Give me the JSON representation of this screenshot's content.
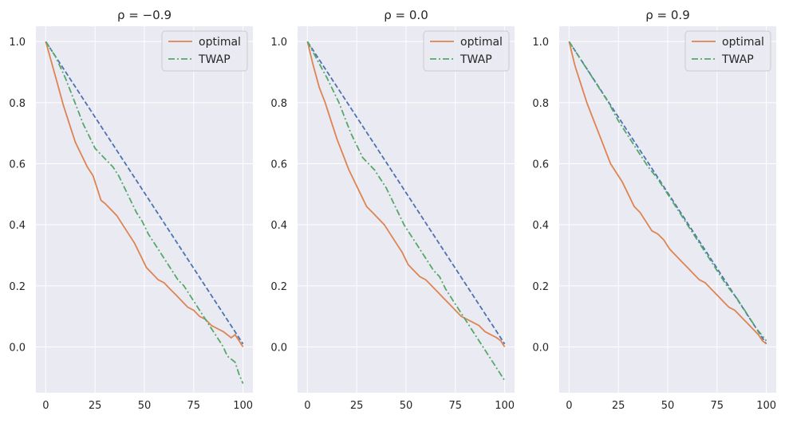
{
  "chart_data": [
    {
      "type": "line",
      "title": "ρ = −0.9",
      "xlabel": "",
      "ylabel": "",
      "xlim": [
        -5,
        105
      ],
      "ylim": [
        -0.15,
        1.05
      ],
      "xticks": [
        0,
        25,
        50,
        75,
        100
      ],
      "yticks": [
        0.0,
        0.2,
        0.4,
        0.6,
        0.8,
        1.0
      ],
      "grid": true,
      "legend_position": "top-right",
      "series": [
        {
          "name": "",
          "color": "#4c72b0",
          "style": "dashed",
          "x": [
            0,
            100
          ],
          "y": [
            1.0,
            0.01
          ]
        },
        {
          "name": "optimal",
          "color": "#dd8452",
          "style": "solid",
          "x": [
            0,
            3,
            6,
            9,
            12,
            15,
            18,
            21,
            24,
            26,
            28,
            30,
            33,
            36,
            39,
            42,
            45,
            48,
            51,
            54,
            57,
            60,
            63,
            66,
            69,
            72,
            75,
            78,
            81,
            84,
            87,
            90,
            92,
            94,
            96,
            98,
            100
          ],
          "y": [
            1.0,
            0.93,
            0.86,
            0.79,
            0.73,
            0.67,
            0.63,
            0.59,
            0.56,
            0.52,
            0.48,
            0.47,
            0.45,
            0.43,
            0.4,
            0.37,
            0.34,
            0.3,
            0.26,
            0.24,
            0.22,
            0.21,
            0.19,
            0.17,
            0.15,
            0.13,
            0.12,
            0.1,
            0.09,
            0.07,
            0.06,
            0.05,
            0.04,
            0.03,
            0.04,
            0.02,
            0.0
          ]
        },
        {
          "name": "TWAP",
          "color": "#55a868",
          "style": "dashdot",
          "x": [
            0,
            5,
            10,
            13,
            16,
            19,
            22,
            25,
            28,
            31,
            34,
            37,
            40,
            43,
            46,
            49,
            52,
            55,
            58,
            61,
            64,
            67,
            70,
            73,
            76,
            79,
            82,
            85,
            88,
            90,
            92,
            94,
            96,
            98,
            100
          ],
          "y": [
            1.0,
            0.95,
            0.88,
            0.83,
            0.78,
            0.73,
            0.69,
            0.65,
            0.63,
            0.61,
            0.59,
            0.56,
            0.52,
            0.48,
            0.44,
            0.41,
            0.37,
            0.34,
            0.31,
            0.28,
            0.25,
            0.22,
            0.2,
            0.17,
            0.14,
            0.11,
            0.08,
            0.05,
            0.02,
            0.0,
            -0.03,
            -0.04,
            -0.05,
            -0.09,
            -0.12
          ]
        }
      ]
    },
    {
      "type": "line",
      "title": "ρ = 0.0",
      "xlabel": "",
      "ylabel": "",
      "xlim": [
        -5,
        105
      ],
      "ylim": [
        -0.15,
        1.05
      ],
      "xticks": [
        0,
        25,
        50,
        75,
        100
      ],
      "yticks": [
        0.0,
        0.2,
        0.4,
        0.6,
        0.8,
        1.0
      ],
      "grid": true,
      "legend_position": "top-right",
      "series": [
        {
          "name": "",
          "color": "#4c72b0",
          "style": "dashed",
          "x": [
            0,
            100
          ],
          "y": [
            1.0,
            0.01
          ]
        },
        {
          "name": "optimal",
          "color": "#dd8452",
          "style": "solid",
          "x": [
            0,
            3,
            6,
            9,
            12,
            15,
            18,
            21,
            24,
            27,
            30,
            33,
            36,
            39,
            42,
            45,
            48,
            51,
            54,
            57,
            60,
            63,
            66,
            69,
            72,
            75,
            78,
            81,
            84,
            87,
            90,
            93,
            96,
            98,
            100
          ],
          "y": [
            1.0,
            0.92,
            0.85,
            0.8,
            0.74,
            0.68,
            0.63,
            0.58,
            0.54,
            0.5,
            0.46,
            0.44,
            0.42,
            0.4,
            0.37,
            0.34,
            0.31,
            0.27,
            0.25,
            0.23,
            0.22,
            0.2,
            0.18,
            0.16,
            0.14,
            0.12,
            0.1,
            0.09,
            0.08,
            0.07,
            0.05,
            0.04,
            0.03,
            0.02,
            0.0
          ]
        },
        {
          "name": "TWAP",
          "color": "#55a868",
          "style": "dashdot",
          "x": [
            0,
            5,
            10,
            13,
            16,
            19,
            22,
            25,
            28,
            31,
            34,
            37,
            40,
            43,
            46,
            49,
            52,
            55,
            58,
            61,
            64,
            67,
            70,
            73,
            76,
            79,
            82,
            85,
            88,
            91,
            94,
            97,
            100
          ],
          "y": [
            1.0,
            0.94,
            0.88,
            0.84,
            0.8,
            0.75,
            0.7,
            0.66,
            0.62,
            0.6,
            0.58,
            0.55,
            0.52,
            0.48,
            0.44,
            0.4,
            0.37,
            0.34,
            0.31,
            0.28,
            0.25,
            0.23,
            0.19,
            0.16,
            0.13,
            0.1,
            0.07,
            0.04,
            0.01,
            -0.02,
            -0.05,
            -0.08,
            -0.11
          ]
        }
      ]
    },
    {
      "type": "line",
      "title": "ρ = 0.9",
      "xlabel": "",
      "ylabel": "",
      "xlim": [
        -5,
        105
      ],
      "ylim": [
        -0.15,
        1.05
      ],
      "xticks": [
        0,
        25,
        50,
        75,
        100
      ],
      "yticks": [
        0.0,
        0.2,
        0.4,
        0.6,
        0.8,
        1.0
      ],
      "grid": true,
      "legend_position": "top-right",
      "series": [
        {
          "name": "",
          "color": "#4c72b0",
          "style": "dashed",
          "x": [
            0,
            100
          ],
          "y": [
            1.0,
            0.01
          ]
        },
        {
          "name": "optimal",
          "color": "#dd8452",
          "style": "solid",
          "x": [
            0,
            3,
            6,
            9,
            12,
            15,
            18,
            21,
            24,
            27,
            30,
            33,
            36,
            39,
            42,
            45,
            48,
            51,
            54,
            57,
            60,
            63,
            66,
            69,
            72,
            75,
            78,
            81,
            84,
            87,
            90,
            93,
            96,
            98,
            100
          ],
          "y": [
            1.0,
            0.92,
            0.86,
            0.8,
            0.75,
            0.7,
            0.65,
            0.6,
            0.57,
            0.54,
            0.5,
            0.46,
            0.44,
            0.41,
            0.38,
            0.37,
            0.35,
            0.32,
            0.3,
            0.28,
            0.26,
            0.24,
            0.22,
            0.21,
            0.19,
            0.17,
            0.15,
            0.13,
            0.12,
            0.1,
            0.08,
            0.06,
            0.04,
            0.02,
            0.01
          ]
        },
        {
          "name": "TWAP",
          "color": "#55a868",
          "style": "dashdot",
          "x": [
            0,
            5,
            10,
            15,
            20,
            25,
            30,
            35,
            40,
            45,
            50,
            55,
            60,
            65,
            70,
            75,
            80,
            85,
            90,
            95,
            100
          ],
          "y": [
            1.0,
            0.95,
            0.9,
            0.85,
            0.8,
            0.74,
            0.69,
            0.64,
            0.59,
            0.55,
            0.5,
            0.45,
            0.4,
            0.35,
            0.3,
            0.25,
            0.2,
            0.16,
            0.11,
            0.06,
            0.02
          ]
        }
      ]
    }
  ]
}
